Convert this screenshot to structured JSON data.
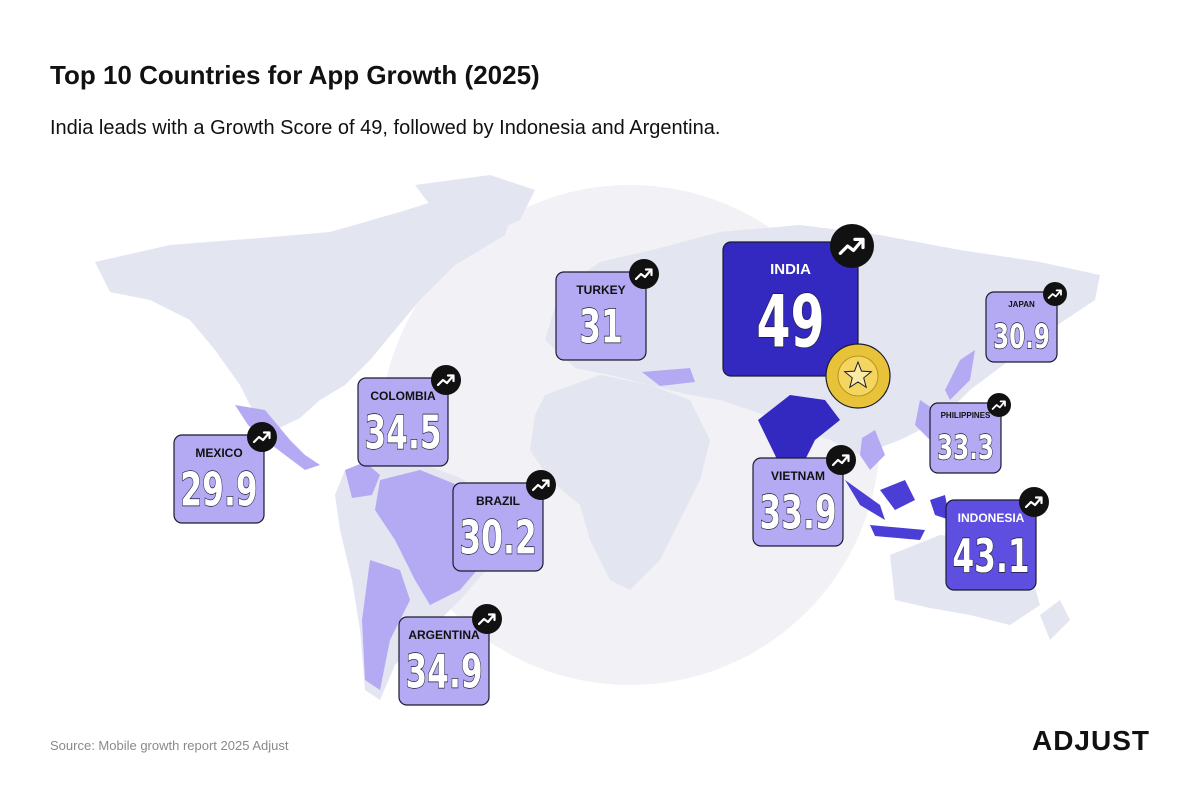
{
  "header": {
    "title": "Top 10 Countries for App Growth (2025)",
    "subtitle": "India leads with a Growth Score of 49, followed by Indonesia and Argentina."
  },
  "countries": [
    {
      "name": "MEXICO",
      "score": 29.9,
      "color": "#b4a9f3"
    },
    {
      "name": "COLOMBIA",
      "score": 34.5,
      "color": "#b4a9f3"
    },
    {
      "name": "BRAZIL",
      "score": 30.2,
      "color": "#b4a9f3"
    },
    {
      "name": "ARGENTINA",
      "score": 34.9,
      "color": "#b4a9f3"
    },
    {
      "name": "TURKEY",
      "score": 31,
      "color": "#b4a9f3"
    },
    {
      "name": "INDIA",
      "score": 49,
      "color": "#3328c0"
    },
    {
      "name": "JAPAN",
      "score": 30.9,
      "color": "#b4a9f3"
    },
    {
      "name": "PHILIPPINES",
      "score": 33.3,
      "color": "#b4a9f3"
    },
    {
      "name": "VIETNAM",
      "score": 33.9,
      "color": "#b4a9f3"
    },
    {
      "name": "INDONESIA",
      "score": 43.1,
      "color": "#5f4fe0"
    }
  ],
  "footer": {
    "source": "Source: Mobile growth report 2025 Adjust",
    "logo": "ADJUST"
  }
}
